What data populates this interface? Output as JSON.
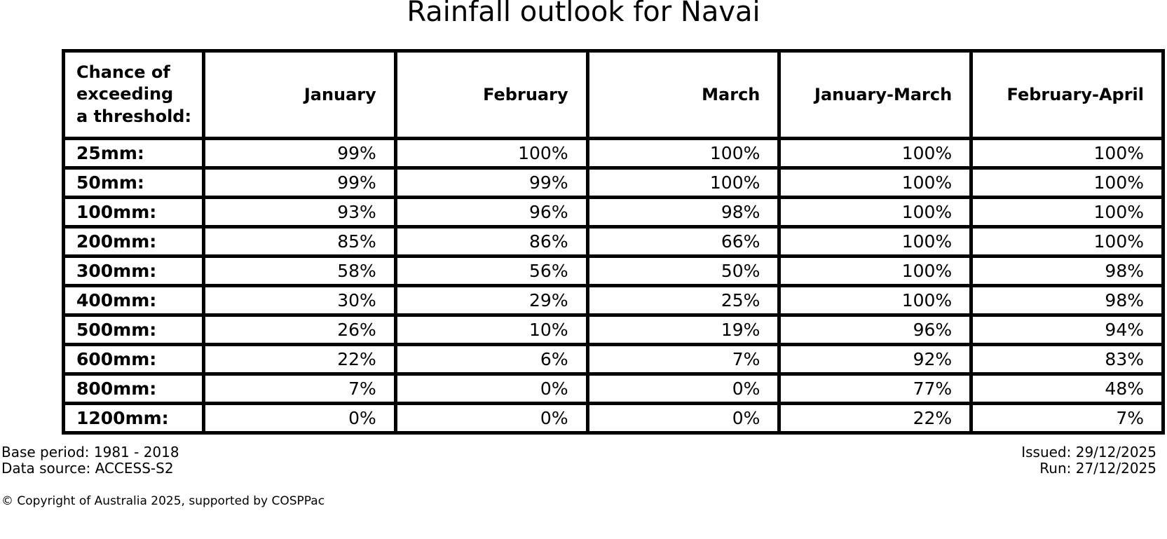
{
  "title": "Rainfall outlook for Navai",
  "table": {
    "header": {
      "corner": "Chance of\nexceeding\na threshold:",
      "columns": [
        "January",
        "February",
        "March",
        "January-March",
        "February-April"
      ]
    },
    "rows": [
      {
        "threshold": "25mm:",
        "values": [
          "99%",
          "100%",
          "100%",
          "100%",
          "100%"
        ]
      },
      {
        "threshold": "50mm:",
        "values": [
          "99%",
          "99%",
          "100%",
          "100%",
          "100%"
        ]
      },
      {
        "threshold": "100mm:",
        "values": [
          "93%",
          "96%",
          "98%",
          "100%",
          "100%"
        ]
      },
      {
        "threshold": "200mm:",
        "values": [
          "85%",
          "86%",
          "66%",
          "100%",
          "100%"
        ]
      },
      {
        "threshold": "300mm:",
        "values": [
          "58%",
          "56%",
          "50%",
          "100%",
          "98%"
        ]
      },
      {
        "threshold": "400mm:",
        "values": [
          "30%",
          "29%",
          "25%",
          "100%",
          "98%"
        ]
      },
      {
        "threshold": "500mm:",
        "values": [
          "26%",
          "10%",
          "19%",
          "96%",
          "94%"
        ]
      },
      {
        "threshold": "600mm:",
        "values": [
          "22%",
          "6%",
          "7%",
          "92%",
          "83%"
        ]
      },
      {
        "threshold": "800mm:",
        "values": [
          "7%",
          "0%",
          "0%",
          "77%",
          "48%"
        ]
      },
      {
        "threshold": "1200mm:",
        "values": [
          "0%",
          "0%",
          "0%",
          "22%",
          "7%"
        ]
      }
    ]
  },
  "footer": {
    "base_period": "Base period: 1981 - 2018",
    "data_source": "Data source: ACCESS-S2",
    "issued": "Issued: 29/12/2025",
    "run": "Run: 27/12/2025",
    "copyright": "© Copyright of Australia 2025, supported by COSPPac"
  },
  "colors": {
    "background": "#ffffff",
    "text": "#000000",
    "border": "#000000"
  },
  "chart_data": {
    "type": "table",
    "title": "Rainfall outlook for Navai",
    "row_label_header": "Chance of exceeding a threshold:",
    "columns": [
      "January",
      "February",
      "March",
      "January-March",
      "February-April"
    ],
    "rows": [
      "25mm",
      "50mm",
      "100mm",
      "200mm",
      "300mm",
      "400mm",
      "500mm",
      "600mm",
      "800mm",
      "1200mm"
    ],
    "values_percent": [
      [
        99,
        100,
        100,
        100,
        100
      ],
      [
        99,
        99,
        100,
        100,
        100
      ],
      [
        93,
        96,
        98,
        100,
        100
      ],
      [
        85,
        86,
        66,
        100,
        100
      ],
      [
        58,
        56,
        50,
        100,
        98
      ],
      [
        30,
        29,
        25,
        100,
        98
      ],
      [
        26,
        10,
        19,
        96,
        94
      ],
      [
        22,
        6,
        7,
        92,
        83
      ],
      [
        7,
        0,
        0,
        77,
        48
      ],
      [
        0,
        0,
        0,
        22,
        7
      ]
    ],
    "base_period": "1981 - 2018",
    "data_source": "ACCESS-S2",
    "issued_date": "29/12/2025",
    "run_date": "27/12/2025"
  }
}
